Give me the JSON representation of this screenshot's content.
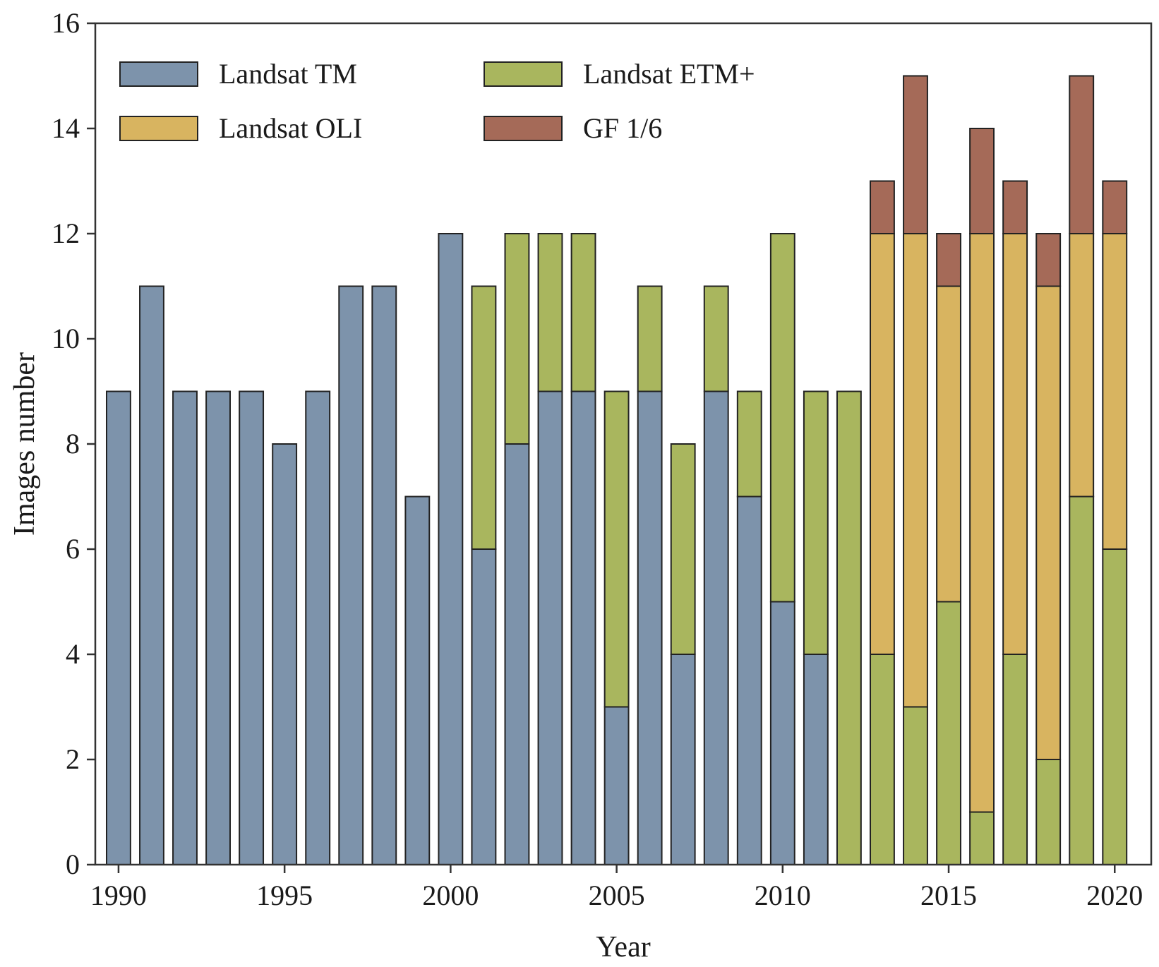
{
  "chart_data": {
    "type": "bar",
    "stacked": true,
    "title": "",
    "xlabel": "Year",
    "ylabel": "Images number",
    "ylim": [
      0,
      16
    ],
    "xlim": [
      1989.3,
      2021.1
    ],
    "y_ticks": [
      0,
      2,
      4,
      6,
      8,
      10,
      12,
      14,
      16
    ],
    "x_ticks": [
      1990,
      1995,
      2000,
      2005,
      2010,
      2015,
      2020
    ],
    "grid": false,
    "legend_position": "top-left",
    "categories": [
      1990,
      1991,
      1992,
      1993,
      1994,
      1995,
      1996,
      1997,
      1998,
      1999,
      2000,
      2001,
      2002,
      2003,
      2004,
      2005,
      2006,
      2007,
      2008,
      2009,
      2010,
      2011,
      2012,
      2013,
      2014,
      2015,
      2016,
      2017,
      2018,
      2019,
      2020
    ],
    "series": [
      {
        "name": "Landsat TM",
        "color": "#7d93ab",
        "values": [
          9,
          11,
          9,
          9,
          9,
          8,
          9,
          11,
          11,
          7,
          12,
          6,
          8,
          9,
          9,
          3,
          9,
          4,
          9,
          7,
          5,
          4,
          0,
          0,
          0,
          0,
          0,
          0,
          0,
          0,
          0
        ]
      },
      {
        "name": "Landsat ETM+",
        "color": "#a9b65e",
        "values": [
          0,
          0,
          0,
          0,
          0,
          0,
          0,
          0,
          0,
          0,
          0,
          5,
          4,
          3,
          3,
          6,
          2,
          4,
          2,
          2,
          7,
          5,
          9,
          4,
          3,
          5,
          1,
          4,
          2,
          7,
          6
        ]
      },
      {
        "name": "Landsat OLI",
        "color": "#d8b460",
        "values": [
          0,
          0,
          0,
          0,
          0,
          0,
          0,
          0,
          0,
          0,
          0,
          0,
          0,
          0,
          0,
          0,
          0,
          0,
          0,
          0,
          0,
          0,
          0,
          8,
          9,
          6,
          11,
          8,
          9,
          5,
          6
        ]
      },
      {
        "name": "GF 1/6",
        "color": "#a56a58",
        "values": [
          0,
          0,
          0,
          0,
          0,
          0,
          0,
          0,
          0,
          0,
          0,
          0,
          0,
          0,
          0,
          0,
          0,
          0,
          0,
          0,
          0,
          0,
          0,
          1,
          3,
          1,
          2,
          1,
          1,
          3,
          1
        ]
      }
    ],
    "legend": [
      {
        "label": "Landsat TM",
        "color": "#7d93ab"
      },
      {
        "label": "Landsat ETM+",
        "color": "#a9b65e"
      },
      {
        "label": "Landsat OLI",
        "color": "#d8b460"
      },
      {
        "label": "GF 1/6",
        "color": "#a56a58"
      }
    ]
  }
}
